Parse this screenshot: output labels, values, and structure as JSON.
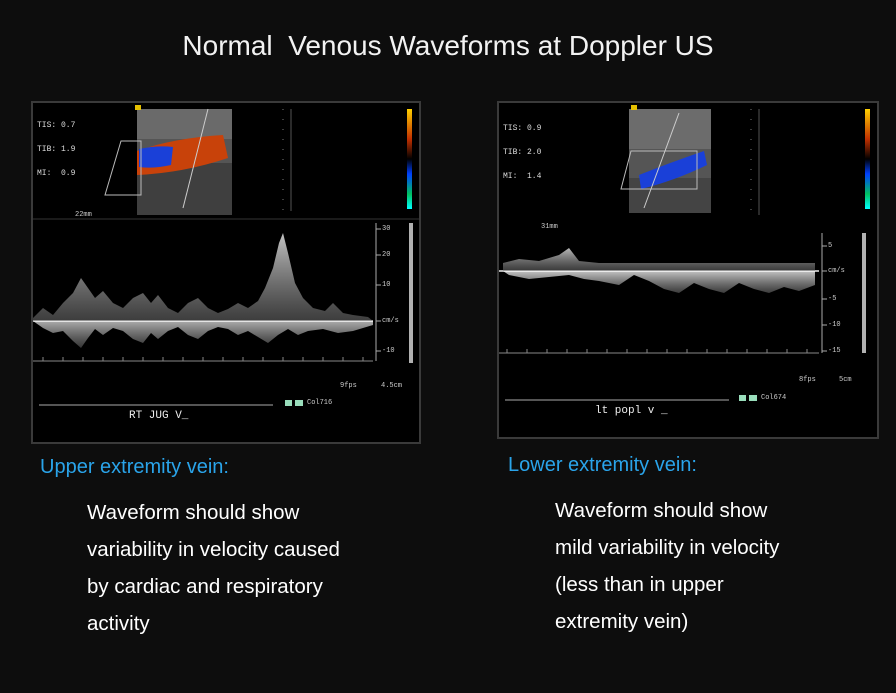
{
  "title": "Normal  Venous Waveforms at Doppler US",
  "left_panel": {
    "params": [
      "TIS: 0.7",
      "TIB: 1.9",
      "MI:  0.9"
    ],
    "depth_label": "22mm",
    "scale_ticks": [
      "30",
      "20",
      "10",
      "cm/s",
      "-10"
    ],
    "frame_rate": "9fps",
    "depth": "4.5cm",
    "preset": "Col716",
    "vessel_label": "RT JUG V_",
    "heading": "Upper extremity vein:",
    "description": [
      "Waveform should show",
      "variability in velocity caused",
      "by cardiac and respiratory",
      "activity"
    ]
  },
  "right_panel": {
    "params": [
      "TIS: 0.9",
      "TIB: 2.0",
      "MI:  1.4"
    ],
    "depth_label": "31mm",
    "scale_ticks": [
      "5",
      "cm/s",
      "-5",
      "-10",
      "-15"
    ],
    "frame_rate": "8fps",
    "depth": "5cm",
    "preset": "Col674",
    "vessel_label": "lt popl v _",
    "heading": "Lower extremity vein:",
    "description": [
      "Waveform should show",
      "mild variability in velocity",
      "(less than in upper",
      "extremity vein)"
    ]
  }
}
